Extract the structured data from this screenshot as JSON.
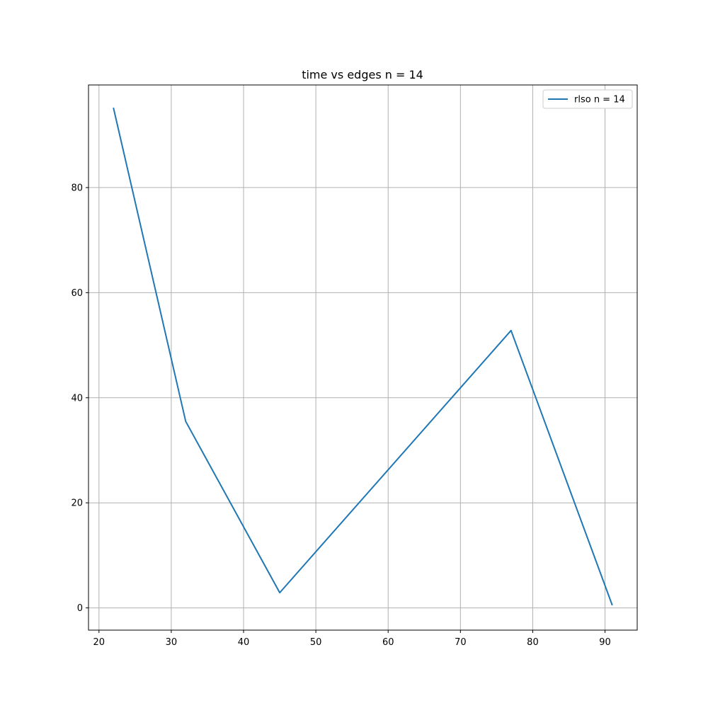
{
  "chart_data": {
    "type": "line",
    "title": "time vs edges n = 14",
    "xlabel": "",
    "ylabel": "",
    "xlim": [
      18.55,
      94.45
    ],
    "ylim": [
      -4.23,
      99.53
    ],
    "xticks": [
      20,
      30,
      40,
      50,
      60,
      70,
      80,
      90
    ],
    "yticks": [
      0,
      20,
      40,
      60,
      80
    ],
    "grid": true,
    "legend_position": "top-right",
    "series": [
      {
        "name": "rlso n = 14",
        "color": "#1f77b4",
        "x": [
          22,
          32,
          45,
          77,
          91
        ],
        "y": [
          95.2,
          35.5,
          2.9,
          52.8,
          0.5
        ]
      }
    ]
  }
}
